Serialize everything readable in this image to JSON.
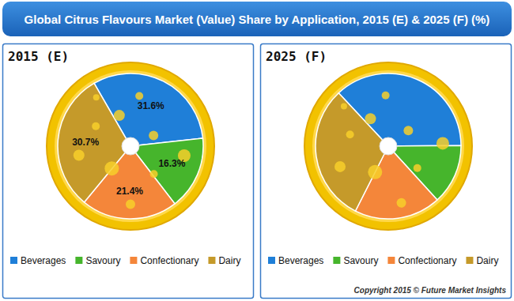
{
  "title": "Global Citrus Flavours Market (Value) Share by Application, 2015 (E) & 2025 (F) (%)",
  "copyright": "Copyright 2015 © Future Market Insights",
  "chart_data": [
    {
      "type": "pie",
      "title": "2015 (E)",
      "categories": [
        "Beverages",
        "Savoury",
        "Confectionary",
        "Dairy"
      ],
      "values": [
        31.6,
        16.3,
        21.4,
        30.7
      ],
      "value_labels": [
        "31.6%",
        "16.3%",
        "21.4%",
        "30.7%"
      ],
      "colors": [
        "#1f7fd8",
        "#46b52c",
        "#f4863a",
        "#c59a2a"
      ],
      "data_labels": true,
      "legend": "bottom"
    },
    {
      "type": "pie",
      "title": "2025 (F)",
      "categories": [
        "Beverages",
        "Savoury",
        "Confectionary",
        "Dairy"
      ],
      "values": [
        36.8,
        13.4,
        19.2,
        30.6
      ],
      "colors": [
        "#1f7fd8",
        "#46b52c",
        "#f4863a",
        "#c59a2a"
      ],
      "data_labels": false,
      "legend": "bottom"
    }
  ]
}
